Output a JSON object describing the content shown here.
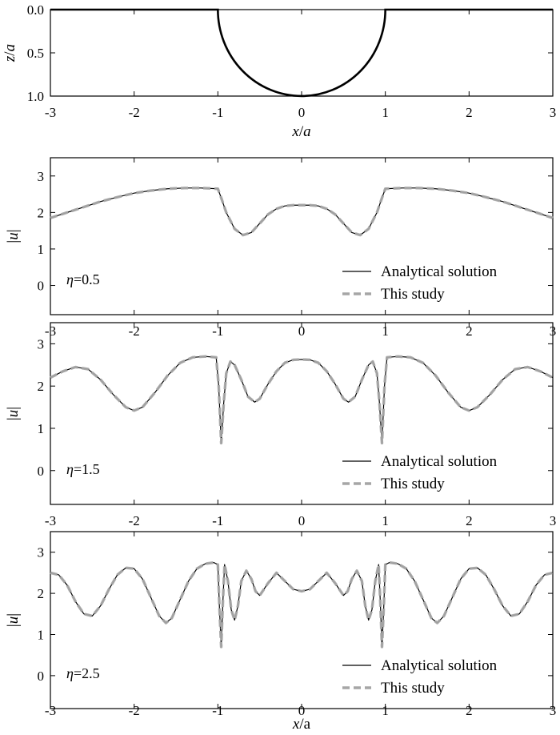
{
  "colors": {
    "analytical": "#000000",
    "study": "#a6a6a6",
    "frame": "#000000"
  },
  "chart_data": [
    {
      "type": "line",
      "id": "geometry",
      "ylabel": "z/a",
      "xlabel": "x/a",
      "xlim": [
        -3,
        3
      ],
      "ylim": [
        1.0,
        0.0
      ],
      "yinverted": true,
      "xticks": [
        "-3",
        "-2",
        "-1",
        "0",
        "1",
        "2",
        "3"
      ],
      "yticks": [
        "0.0",
        "0.5",
        "1.0"
      ],
      "series": [
        {
          "shape": "semicircular canyon",
          "x": [
            -3,
            -1,
            -0.9,
            -0.8,
            -0.6,
            -0.4,
            -0.2,
            0,
            0.2,
            0.4,
            0.6,
            0.8,
            0.9,
            1,
            3
          ],
          "values": [
            0,
            0,
            0.436,
            0.6,
            0.8,
            0.917,
            0.98,
            1.0,
            0.98,
            0.917,
            0.8,
            0.6,
            0.436,
            0,
            0
          ]
        }
      ]
    },
    {
      "type": "line",
      "id": "eta05",
      "annotation": "η=0.5",
      "ylabel": "|u|",
      "xlabel": "",
      "xlim": [
        -3,
        3
      ],
      "ylim": [
        -0.8,
        3.5
      ],
      "xticks": [
        "-3",
        "-2",
        "-1",
        "0",
        "1",
        "2",
        "3"
      ],
      "yticks": [
        "0",
        "1",
        "2",
        "3"
      ],
      "legend": {
        "position": "bottom-right",
        "entries": [
          "Analytical solution",
          "This study"
        ]
      },
      "series": [
        {
          "name": "Analytical solution",
          "x": [
            -3,
            -2.8,
            -2.6,
            -2.4,
            -2.2,
            -2.0,
            -1.8,
            -1.6,
            -1.4,
            -1.2,
            -1.0,
            -0.96,
            -0.9,
            -0.8,
            -0.7,
            -0.6,
            -0.5,
            -0.4,
            -0.3,
            -0.2,
            -0.1,
            0,
            0.1,
            0.2,
            0.3,
            0.4,
            0.5,
            0.6,
            0.7,
            0.8,
            0.9,
            0.96,
            1.0,
            1.2,
            1.4,
            1.6,
            1.8,
            2.0,
            2.2,
            2.4,
            2.6,
            2.8,
            3.0
          ],
          "values": [
            1.85,
            2.0,
            2.15,
            2.3,
            2.42,
            2.53,
            2.6,
            2.65,
            2.67,
            2.67,
            2.65,
            2.4,
            2.0,
            1.55,
            1.38,
            1.45,
            1.7,
            1.95,
            2.1,
            2.18,
            2.2,
            2.2,
            2.2,
            2.18,
            2.1,
            1.95,
            1.7,
            1.45,
            1.38,
            1.55,
            2.0,
            2.4,
            2.65,
            2.67,
            2.67,
            2.65,
            2.6,
            2.53,
            2.42,
            2.3,
            2.15,
            2.0,
            1.85
          ]
        },
        {
          "name": "This study",
          "x": [
            -3,
            -2.8,
            -2.6,
            -2.4,
            -2.2,
            -2.0,
            -1.8,
            -1.6,
            -1.4,
            -1.2,
            -1.0,
            -0.96,
            -0.9,
            -0.8,
            -0.7,
            -0.6,
            -0.5,
            -0.4,
            -0.3,
            -0.2,
            -0.1,
            0,
            0.1,
            0.2,
            0.3,
            0.4,
            0.5,
            0.6,
            0.7,
            0.8,
            0.9,
            0.96,
            1.0,
            1.2,
            1.4,
            1.6,
            1.8,
            2.0,
            2.2,
            2.4,
            2.6,
            2.8,
            3.0
          ],
          "values": [
            1.85,
            2.0,
            2.15,
            2.3,
            2.42,
            2.53,
            2.6,
            2.65,
            2.67,
            2.67,
            2.65,
            2.4,
            2.0,
            1.55,
            1.38,
            1.45,
            1.7,
            1.95,
            2.1,
            2.18,
            2.2,
            2.2,
            2.2,
            2.18,
            2.1,
            1.95,
            1.7,
            1.45,
            1.38,
            1.55,
            2.0,
            2.4,
            2.65,
            2.67,
            2.67,
            2.65,
            2.6,
            2.53,
            2.42,
            2.3,
            2.15,
            2.0,
            1.85
          ]
        }
      ]
    },
    {
      "type": "line",
      "id": "eta15",
      "annotation": "η=1.5",
      "ylabel": "|u|",
      "xlabel": "",
      "xlim": [
        -3,
        3
      ],
      "ylim": [
        -0.8,
        3.5
      ],
      "xticks": [
        "-3",
        "-2",
        "-1",
        "0",
        "1",
        "2",
        "3"
      ],
      "yticks": [
        "0",
        "1",
        "2",
        "3"
      ],
      "legend": {
        "position": "bottom-right",
        "entries": [
          "Analytical solution",
          "This study"
        ]
      },
      "series": [
        {
          "name": "Analytical solution",
          "x": [
            -3,
            -2.85,
            -2.7,
            -2.55,
            -2.4,
            -2.25,
            -2.1,
            -2.0,
            -1.9,
            -1.75,
            -1.6,
            -1.45,
            -1.3,
            -1.15,
            -1.02,
            -0.99,
            -0.96,
            -0.93,
            -0.9,
            -0.85,
            -0.8,
            -0.72,
            -0.64,
            -0.56,
            -0.5,
            -0.4,
            -0.3,
            -0.2,
            -0.1,
            0,
            0.1,
            0.2,
            0.3,
            0.4,
            0.5,
            0.56,
            0.64,
            0.72,
            0.8,
            0.85,
            0.9,
            0.93,
            0.96,
            0.99,
            1.02,
            1.15,
            1.3,
            1.45,
            1.6,
            1.75,
            1.9,
            2.0,
            2.1,
            2.25,
            2.4,
            2.55,
            2.7,
            2.85,
            3.0
          ],
          "values": [
            2.2,
            2.35,
            2.45,
            2.4,
            2.15,
            1.8,
            1.5,
            1.42,
            1.5,
            1.85,
            2.25,
            2.55,
            2.68,
            2.7,
            2.68,
            2.0,
            0.65,
            1.6,
            2.3,
            2.58,
            2.5,
            2.15,
            1.75,
            1.62,
            1.7,
            2.05,
            2.35,
            2.55,
            2.62,
            2.63,
            2.62,
            2.55,
            2.35,
            2.05,
            1.7,
            1.62,
            1.75,
            2.15,
            2.5,
            2.58,
            2.3,
            1.6,
            0.65,
            2.0,
            2.68,
            2.7,
            2.68,
            2.55,
            2.25,
            1.85,
            1.5,
            1.42,
            1.5,
            1.8,
            2.15,
            2.4,
            2.45,
            2.35,
            2.2
          ]
        },
        {
          "name": "This study",
          "x": [
            -3,
            -2.85,
            -2.7,
            -2.55,
            -2.4,
            -2.25,
            -2.1,
            -2.0,
            -1.9,
            -1.75,
            -1.6,
            -1.45,
            -1.3,
            -1.15,
            -1.02,
            -0.99,
            -0.96,
            -0.93,
            -0.9,
            -0.85,
            -0.8,
            -0.72,
            -0.64,
            -0.56,
            -0.5,
            -0.4,
            -0.3,
            -0.2,
            -0.1,
            0,
            0.1,
            0.2,
            0.3,
            0.4,
            0.5,
            0.56,
            0.64,
            0.72,
            0.8,
            0.85,
            0.9,
            0.93,
            0.96,
            0.99,
            1.02,
            1.15,
            1.3,
            1.45,
            1.6,
            1.75,
            1.9,
            2.0,
            2.1,
            2.25,
            2.4,
            2.55,
            2.7,
            2.85,
            3.0
          ],
          "values": [
            2.2,
            2.35,
            2.45,
            2.4,
            2.15,
            1.8,
            1.5,
            1.42,
            1.5,
            1.85,
            2.25,
            2.55,
            2.68,
            2.7,
            2.68,
            2.0,
            0.65,
            1.6,
            2.3,
            2.58,
            2.5,
            2.15,
            1.75,
            1.62,
            1.7,
            2.05,
            2.35,
            2.55,
            2.62,
            2.63,
            2.62,
            2.55,
            2.35,
            2.05,
            1.7,
            1.62,
            1.75,
            2.15,
            2.5,
            2.58,
            2.3,
            1.6,
            0.65,
            2.0,
            2.68,
            2.7,
            2.68,
            2.55,
            2.25,
            1.85,
            1.5,
            1.42,
            1.5,
            1.8,
            2.15,
            2.4,
            2.45,
            2.35,
            2.2
          ]
        }
      ]
    },
    {
      "type": "line",
      "id": "eta25",
      "annotation": "η=2.5",
      "ylabel": "|u|",
      "xlabel": "x/a",
      "xlim": [
        -3,
        3
      ],
      "ylim": [
        -0.8,
        3.5
      ],
      "xticks": [
        "-3",
        "-2",
        "-1",
        "0",
        "1",
        "2",
        "3"
      ],
      "yticks": [
        "0",
        "1",
        "2",
        "3"
      ],
      "legend": {
        "position": "bottom-right",
        "entries": [
          "Analytical solution",
          "This study"
        ]
      },
      "series": [
        {
          "name": "Analytical solution",
          "x": [
            -3,
            -2.9,
            -2.8,
            -2.7,
            -2.6,
            -2.5,
            -2.4,
            -2.3,
            -2.2,
            -2.1,
            -2.0,
            -1.9,
            -1.8,
            -1.7,
            -1.62,
            -1.55,
            -1.45,
            -1.35,
            -1.25,
            -1.15,
            -1.05,
            -1.0,
            -0.98,
            -0.96,
            -0.94,
            -0.92,
            -0.88,
            -0.84,
            -0.8,
            -0.76,
            -0.72,
            -0.66,
            -0.6,
            -0.55,
            -0.5,
            -0.4,
            -0.3,
            -0.2,
            -0.1,
            0,
            0.1,
            0.2,
            0.3,
            0.4,
            0.5,
            0.55,
            0.6,
            0.66,
            0.72,
            0.76,
            0.8,
            0.84,
            0.88,
            0.92,
            0.94,
            0.96,
            0.98,
            1.0,
            1.05,
            1.15,
            1.25,
            1.35,
            1.45,
            1.55,
            1.62,
            1.7,
            1.8,
            1.9,
            2.0,
            2.1,
            2.2,
            2.3,
            2.4,
            2.5,
            2.6,
            2.7,
            2.8,
            2.9,
            3.0
          ],
          "values": [
            2.5,
            2.45,
            2.2,
            1.8,
            1.5,
            1.45,
            1.7,
            2.1,
            2.45,
            2.62,
            2.6,
            2.35,
            1.9,
            1.45,
            1.28,
            1.4,
            1.85,
            2.3,
            2.6,
            2.72,
            2.75,
            2.7,
            1.6,
            0.7,
            1.8,
            2.7,
            2.3,
            1.6,
            1.35,
            1.7,
            2.3,
            2.55,
            2.35,
            2.05,
            1.95,
            2.25,
            2.5,
            2.3,
            2.1,
            2.05,
            2.1,
            2.3,
            2.5,
            2.25,
            1.95,
            2.05,
            2.35,
            2.55,
            2.3,
            1.7,
            1.35,
            1.6,
            2.3,
            2.7,
            1.8,
            0.7,
            1.6,
            2.7,
            2.75,
            2.72,
            2.6,
            2.3,
            1.85,
            1.4,
            1.28,
            1.45,
            1.9,
            2.35,
            2.6,
            2.62,
            2.45,
            2.1,
            1.7,
            1.45,
            1.5,
            1.8,
            2.2,
            2.45,
            2.5
          ]
        },
        {
          "name": "This study",
          "x": [
            -3,
            -2.9,
            -2.8,
            -2.7,
            -2.6,
            -2.5,
            -2.4,
            -2.3,
            -2.2,
            -2.1,
            -2.0,
            -1.9,
            -1.8,
            -1.7,
            -1.62,
            -1.55,
            -1.45,
            -1.35,
            -1.25,
            -1.15,
            -1.05,
            -1.0,
            -0.98,
            -0.96,
            -0.94,
            -0.92,
            -0.88,
            -0.84,
            -0.8,
            -0.76,
            -0.72,
            -0.66,
            -0.6,
            -0.55,
            -0.5,
            -0.4,
            -0.3,
            -0.2,
            -0.1,
            0,
            0.1,
            0.2,
            0.3,
            0.4,
            0.5,
            0.55,
            0.6,
            0.66,
            0.72,
            0.76,
            0.8,
            0.84,
            0.88,
            0.92,
            0.94,
            0.96,
            0.98,
            1.0,
            1.05,
            1.15,
            1.25,
            1.35,
            1.45,
            1.55,
            1.62,
            1.7,
            1.8,
            1.9,
            2.0,
            2.1,
            2.2,
            2.3,
            2.4,
            2.5,
            2.6,
            2.7,
            2.8,
            2.9,
            3.0
          ],
          "values": [
            2.5,
            2.45,
            2.2,
            1.8,
            1.5,
            1.45,
            1.7,
            2.1,
            2.45,
            2.62,
            2.6,
            2.35,
            1.9,
            1.45,
            1.28,
            1.4,
            1.85,
            2.3,
            2.6,
            2.72,
            2.75,
            2.7,
            1.6,
            0.7,
            1.8,
            2.7,
            2.3,
            1.6,
            1.35,
            1.7,
            2.3,
            2.55,
            2.35,
            2.05,
            1.95,
            2.25,
            2.5,
            2.3,
            2.1,
            2.05,
            2.1,
            2.3,
            2.5,
            2.25,
            1.95,
            2.05,
            2.35,
            2.55,
            2.3,
            1.7,
            1.35,
            1.6,
            2.3,
            2.7,
            1.8,
            0.7,
            1.6,
            2.7,
            2.75,
            2.72,
            2.6,
            2.3,
            1.85,
            1.4,
            1.28,
            1.45,
            1.9,
            2.35,
            2.6,
            2.62,
            2.45,
            2.1,
            1.7,
            1.45,
            1.5,
            1.8,
            2.2,
            2.45,
            2.5
          ]
        }
      ]
    }
  ]
}
